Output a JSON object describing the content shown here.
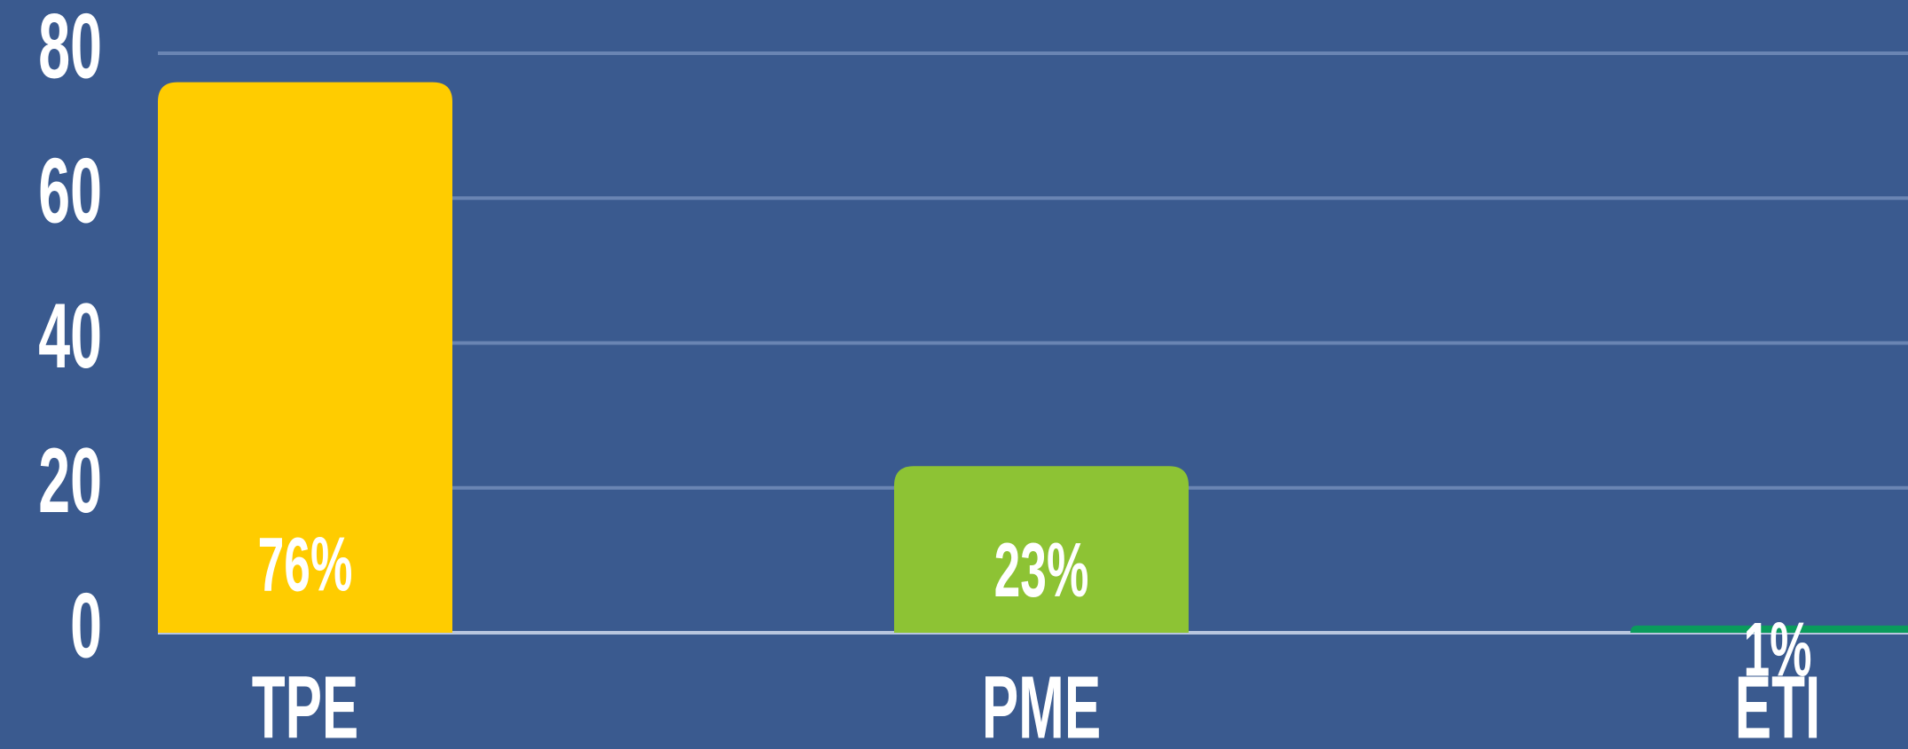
{
  "chart_data": {
    "type": "bar",
    "categories": [
      "TPE",
      "PME",
      "ETI"
    ],
    "values": [
      76,
      23,
      1
    ],
    "value_labels": [
      "76%",
      "23%",
      "1%"
    ],
    "colors": [
      "#ffcc00",
      "#8dc334",
      "#0a9b5c"
    ],
    "ylim": [
      0,
      80
    ],
    "yticks": [
      0,
      20,
      40,
      60,
      80
    ],
    "grid": true
  }
}
